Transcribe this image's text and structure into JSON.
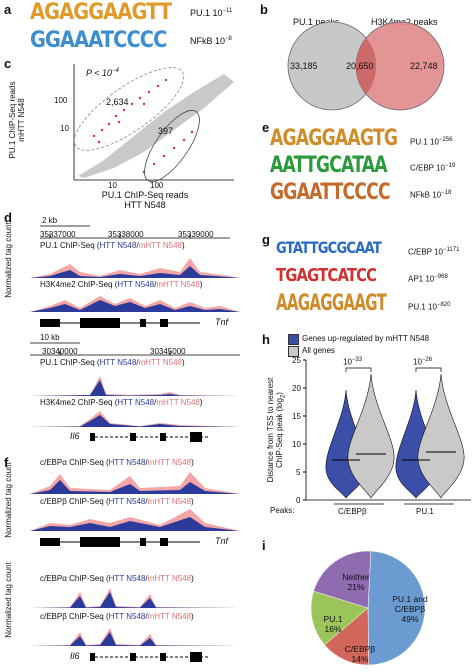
{
  "panels": {
    "a": {
      "label": "a",
      "motifs": [
        {
          "seq": "AGAGGAAGTT",
          "name": "PU.1",
          "pval": "10",
          "exp": "−11"
        },
        {
          "seq": "GGAAATCCCC",
          "name": "NFkB",
          "pval": "10",
          "exp": "−8"
        }
      ]
    },
    "b": {
      "label": "b",
      "left_title": "PU.1 peaks",
      "right_title": "H3K4me2 peaks",
      "left_only": "33,185",
      "overlap": "20,650",
      "right_only": "22,748",
      "colors": {
        "left": "#c8c8c8",
        "right": "#e08a8a",
        "overlap": "#d06d6d"
      }
    },
    "c": {
      "label": "c",
      "pval": "P < 10",
      "pexp": "−4",
      "up": "2,634",
      "down": "397",
      "ylabel1": "PU.1 ChIP-Seq reads",
      "ylabel2": "mHTT N548",
      "xlabel1": "PU.1 ChIP-Seq reads",
      "xlabel2": "HTT N548",
      "yticks": [
        "100",
        "10"
      ],
      "xticks": [
        "10",
        "100"
      ]
    },
    "d": {
      "label": "d",
      "tnf": {
        "scale": "2 kb",
        "coords": [
          "35337000",
          "35338000",
          "35339000"
        ],
        "track1": "PU.1 ChIP-Seq (",
        "track1_htt": "HTT N548",
        "track1_sep": "/",
        "track1_mhtt": "mHTT N548",
        "track1_end": ")",
        "track2": "H3K4me2 ChIP-Seq (",
        "gene": "Tnf"
      },
      "il6": {
        "scale": "10 kb",
        "coords": [
          "30340000",
          "30345000"
        ],
        "track1": "PU.1 ChIP-Seq (",
        "track2": "H3K4me2 ChIP-Seq (",
        "gene": "Il6"
      },
      "ylabel": "Normalized tag count"
    },
    "e": {
      "label": "e",
      "motifs": [
        {
          "seq": "AGAGGAAGTG",
          "name": "PU.1",
          "pval": "10",
          "exp": "−256"
        },
        {
          "seq": "AATTGCATAA",
          "name": "C/EBP",
          "pval": "10",
          "exp": "−19"
        },
        {
          "seq": "GGAATTCCCC",
          "name": "NFkB",
          "pval": "10",
          "exp": "−18"
        }
      ]
    },
    "f": {
      "label": "f",
      "tnf": {
        "track1": "c/EBPα ChIP-Seq (",
        "track2": "c/EBPβ ChIP-Seq (",
        "gene": "Tnf"
      },
      "il6": {
        "track1": "c/EBPα ChIP-Seq (",
        "track2": "c/EBPβ ChIP-Seq (",
        "gene": "Il6"
      },
      "ylabel": "Normalized tag count"
    },
    "g": {
      "label": "g",
      "motifs": [
        {
          "seq": "GTATTGCGCAAT",
          "name": "C/EBP",
          "pval": "10",
          "exp": "−1171"
        },
        {
          "seq": "TGAGTCATCC",
          "name": "AP1",
          "pval": "10",
          "exp": "−968"
        },
        {
          "seq": "AAGAGGAAGT",
          "name": "PU.1",
          "pval": "10",
          "exp": "−820"
        }
      ]
    },
    "h": {
      "label": "h",
      "legend": [
        "Genes up-regulated by mHTT N548",
        "All genes"
      ],
      "colors": {
        "up": "#3b4ea8",
        "all": "#c9c9c9"
      },
      "ylabel1": "Distance from TSS to nearest",
      "ylabel2": "ChIP-Seq peak (log",
      "ylabel_sub": "2",
      "yticks": [
        "25",
        "20",
        "15",
        "10",
        "5",
        "0"
      ],
      "peaks_label": "Peaks:",
      "groups": [
        "C/EBPβ",
        "PU.1"
      ],
      "pvals": [
        {
          "base": "10",
          "exp": "−33"
        },
        {
          "base": "10",
          "exp": "−26"
        }
      ]
    },
    "i": {
      "label": "i",
      "chart_data": {
        "type": "pie",
        "slices": [
          {
            "label": "PU.1 and C/EBPβ",
            "value": 49,
            "color": "#6b9bd1"
          },
          {
            "label": "C/EBPβ",
            "value": 14,
            "color": "#d2665a"
          },
          {
            "label": "PU.1",
            "value": 16,
            "color": "#9bc45a"
          },
          {
            "label": "Neither",
            "value": 21,
            "color": "#8f6bb0"
          }
        ]
      },
      "labels": [
        {
          "t1": "PU.1 and",
          "t2": "C/EBPβ",
          "t3": "49%"
        },
        {
          "t1": "C/EBPβ",
          "t2": "14%"
        },
        {
          "t1": "PU.1",
          "t2": "16%"
        },
        {
          "t1": "Neither",
          "t2": "21%"
        }
      ]
    }
  }
}
